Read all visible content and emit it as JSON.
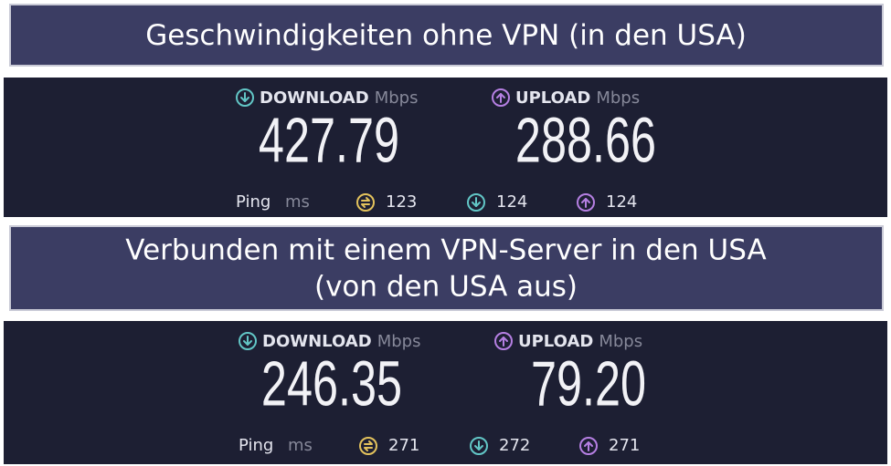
{
  "sections": [
    {
      "title": [
        "Geschwindigkeiten ohne VPN (in den USA)"
      ],
      "speedtest": {
        "download": {
          "label": "DOWNLOAD",
          "unit": "Mbps",
          "value": "427.79"
        },
        "upload": {
          "label": "UPLOAD",
          "unit": "Mbps",
          "value": "288.66"
        },
        "ping": {
          "label": "Ping",
          "unit": "ms",
          "idle": "123",
          "download": "124",
          "upload": "124"
        }
      }
    },
    {
      "title": [
        "Verbunden mit einem VPN-Server in den USA",
        "(von den USA aus)"
      ],
      "speedtest": {
        "download": {
          "label": "DOWNLOAD",
          "unit": "Mbps",
          "value": "246.35"
        },
        "upload": {
          "label": "UPLOAD",
          "unit": "Mbps",
          "value": "79.20"
        },
        "ping": {
          "label": "Ping",
          "unit": "ms",
          "idle": "271",
          "download": "272",
          "upload": "271"
        }
      }
    }
  ]
}
